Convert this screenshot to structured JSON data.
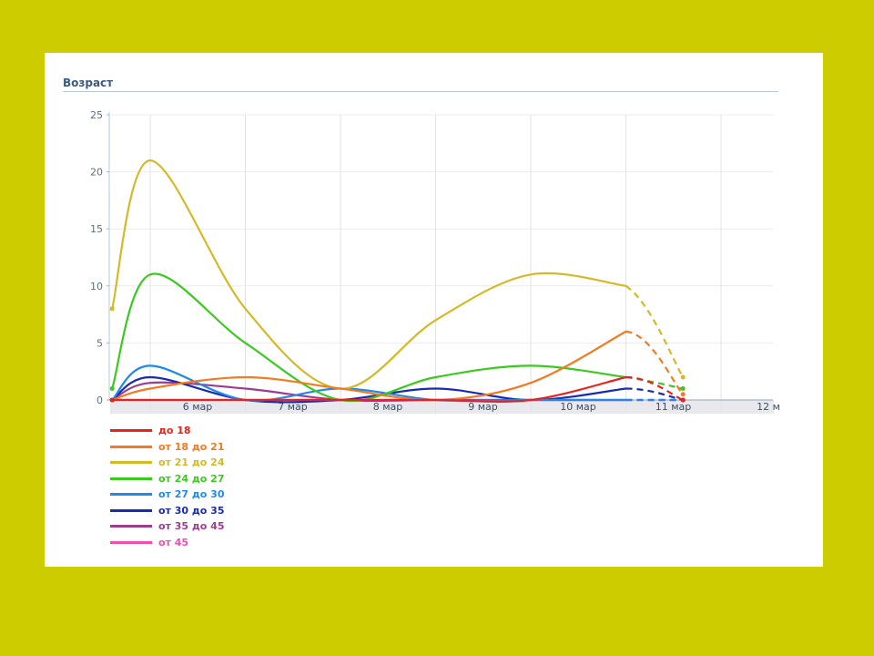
{
  "chart_data": {
    "type": "line",
    "title": "Возраст",
    "xlabel": "",
    "ylabel": "",
    "categories": [
      "6 мар",
      "7 мар",
      "8 мар",
      "9 мар",
      "10 мар",
      "11 мар",
      "12 м"
    ],
    "x": [
      5.6,
      6,
      7,
      8,
      9,
      10,
      11,
      11.6
    ],
    "ylim": [
      0,
      25
    ],
    "yticks": [
      0,
      5,
      10,
      15,
      20,
      25
    ],
    "grid": true,
    "legend_position": "bottom-left",
    "dashed_last_segment": true,
    "series": [
      {
        "name": "до 18",
        "color": "#e8231d",
        "values": [
          0,
          0,
          0,
          0,
          0,
          0,
          2,
          0
        ]
      },
      {
        "name": "от 18 до 21",
        "color": "#f37a21",
        "values": [
          0,
          1,
          2,
          1,
          0,
          1.5,
          6,
          0.5
        ]
      },
      {
        "name": "от 21 до 24",
        "color": "#d4b928",
        "values": [
          8,
          21,
          8,
          1,
          7,
          11,
          10,
          2
        ]
      },
      {
        "name": "от 24 до 27",
        "color": "#3cc91f",
        "values": [
          1,
          11,
          5,
          0,
          2,
          3,
          2,
          1
        ]
      },
      {
        "name": "от 27 до 30",
        "color": "#1f8ae8",
        "values": [
          0,
          3,
          0,
          1,
          0,
          0,
          0,
          0
        ]
      },
      {
        "name": "от 30 до 35",
        "color": "#1a2bb0",
        "values": [
          0,
          2,
          0,
          0,
          1,
          0,
          1,
          0
        ]
      },
      {
        "name": "от 35 до 45",
        "color": "#9b3e8f",
        "values": [
          0,
          1.5,
          1,
          0,
          0,
          0,
          0,
          0
        ]
      },
      {
        "name": "от 45",
        "color": "#ef4fb0",
        "values": [
          0,
          0,
          0,
          0,
          0,
          0,
          0,
          0
        ]
      }
    ]
  }
}
